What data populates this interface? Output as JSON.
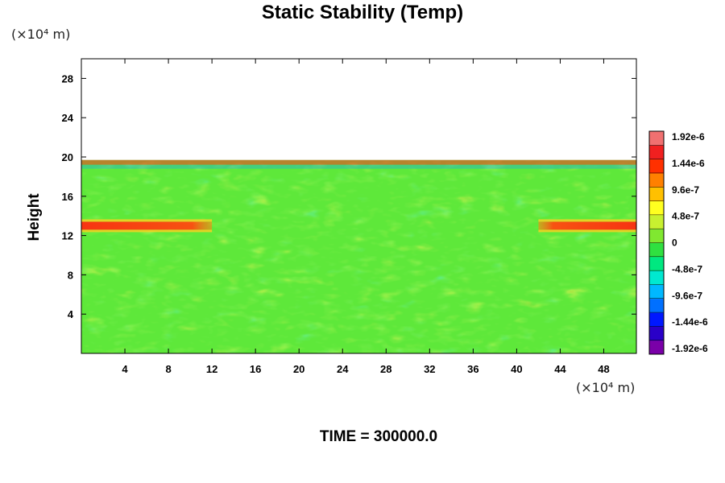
{
  "title": "Static Stability (Temp)",
  "y_unit": "(×10⁴ m)",
  "x_unit": "(×10⁴ m)",
  "ylabel": "Height",
  "time_label": "TIME = 300000.0",
  "chart_data": {
    "type": "heatmap",
    "title": "Static Stability (Temp)",
    "xlabel": "",
    "ylabel": "Height",
    "xlim": [
      0,
      51
    ],
    "ylim": [
      0,
      30
    ],
    "x_ticks": [
      4,
      8,
      12,
      16,
      20,
      24,
      28,
      32,
      36,
      40,
      44,
      48
    ],
    "y_ticks": [
      4,
      8,
      12,
      16,
      20,
      24,
      28
    ],
    "field_top": 19.7,
    "bands": [
      {
        "y": 13.0,
        "x_start": 0,
        "x_end": 12,
        "value": 1.6e-06
      },
      {
        "y": 13.0,
        "x_start": 42,
        "x_end": 51,
        "value": 1.6e-06
      }
    ],
    "colorbar": {
      "ticks": [
        "1.92e-6",
        "1.44e-6",
        "9.6e-7",
        "4.8e-7",
        "0",
        "-4.8e-7",
        "-9.6e-7",
        "-1.44e-6",
        "-1.92e-6"
      ],
      "range": [
        -1.92e-06,
        1.92e-06
      ],
      "colors": [
        "#7a00a8",
        "#2a00c8",
        "#0018ff",
        "#0070ff",
        "#00b8ff",
        "#00e8d0",
        "#00e880",
        "#30e040",
        "#80e830",
        "#c8f030",
        "#ffff20",
        "#ffc000",
        "#ff8000",
        "#ff3000",
        "#f02020",
        "#f07070"
      ]
    },
    "grid": false
  }
}
